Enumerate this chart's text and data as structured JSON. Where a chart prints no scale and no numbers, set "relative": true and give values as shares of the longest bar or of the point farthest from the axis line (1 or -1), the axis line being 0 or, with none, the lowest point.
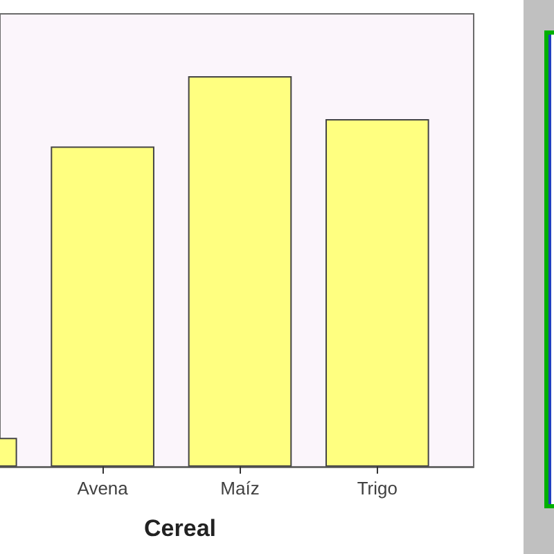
{
  "chart_data": {
    "type": "bar",
    "categories": [
      null,
      "Avena",
      "Maíz",
      "Trigo"
    ],
    "values": [
      0.074,
      0.82,
      1,
      0.89
    ],
    "color": "#ffff80",
    "relative": true,
    "xlabel": "Cereal"
  }
}
